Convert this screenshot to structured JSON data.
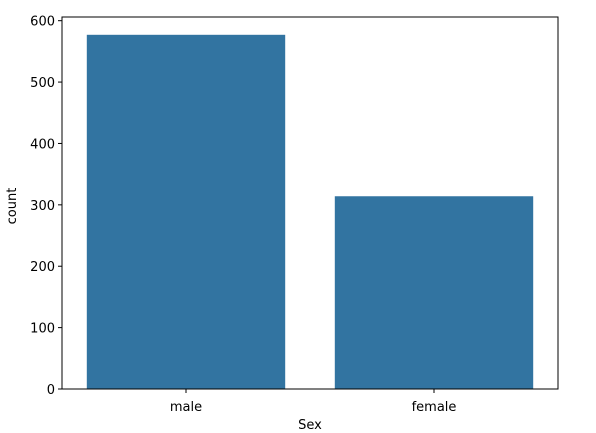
{
  "chart_data": {
    "type": "bar",
    "categories": [
      "male",
      "female"
    ],
    "values": [
      577,
      314
    ],
    "xlabel": "Sex",
    "ylabel": "count",
    "ylim": [
      0,
      606
    ],
    "yticks": [
      0,
      100,
      200,
      300,
      400,
      500,
      600
    ],
    "grid": false,
    "legend": "none",
    "bar_color": "#3274a1"
  }
}
